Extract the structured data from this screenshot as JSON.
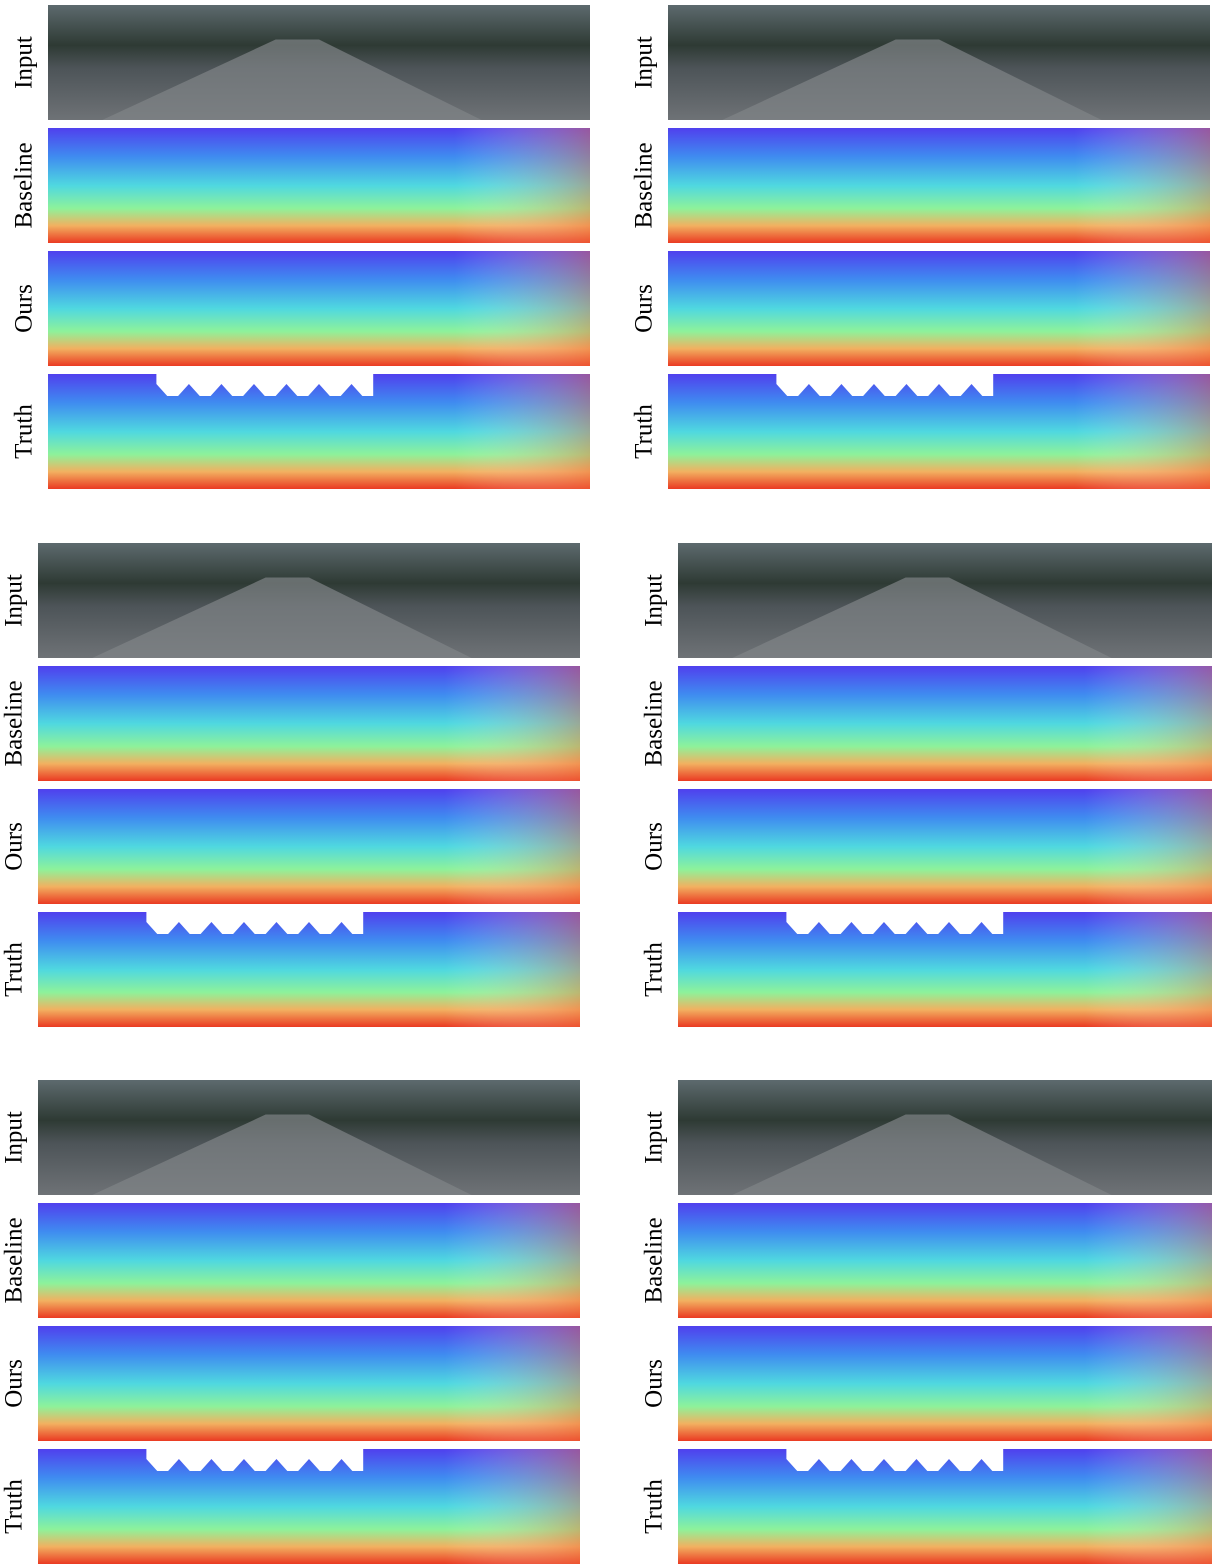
{
  "panels": [
    {
      "rows": [
        "Input",
        "Baseline",
        "Ours",
        "Truth"
      ]
    },
    {
      "rows": [
        "Input",
        "Baseline",
        "Ours",
        "Truth"
      ]
    },
    {
      "rows": [
        "Input",
        "Baseline",
        "Ours",
        "Truth"
      ]
    },
    {
      "rows": [
        "Input",
        "Baseline",
        "Ours",
        "Truth"
      ]
    },
    {
      "rows": [
        "Input",
        "Baseline",
        "Ours",
        "Truth"
      ]
    },
    {
      "rows": [
        "Input",
        "Baseline",
        "Ours",
        "Truth"
      ]
    }
  ]
}
